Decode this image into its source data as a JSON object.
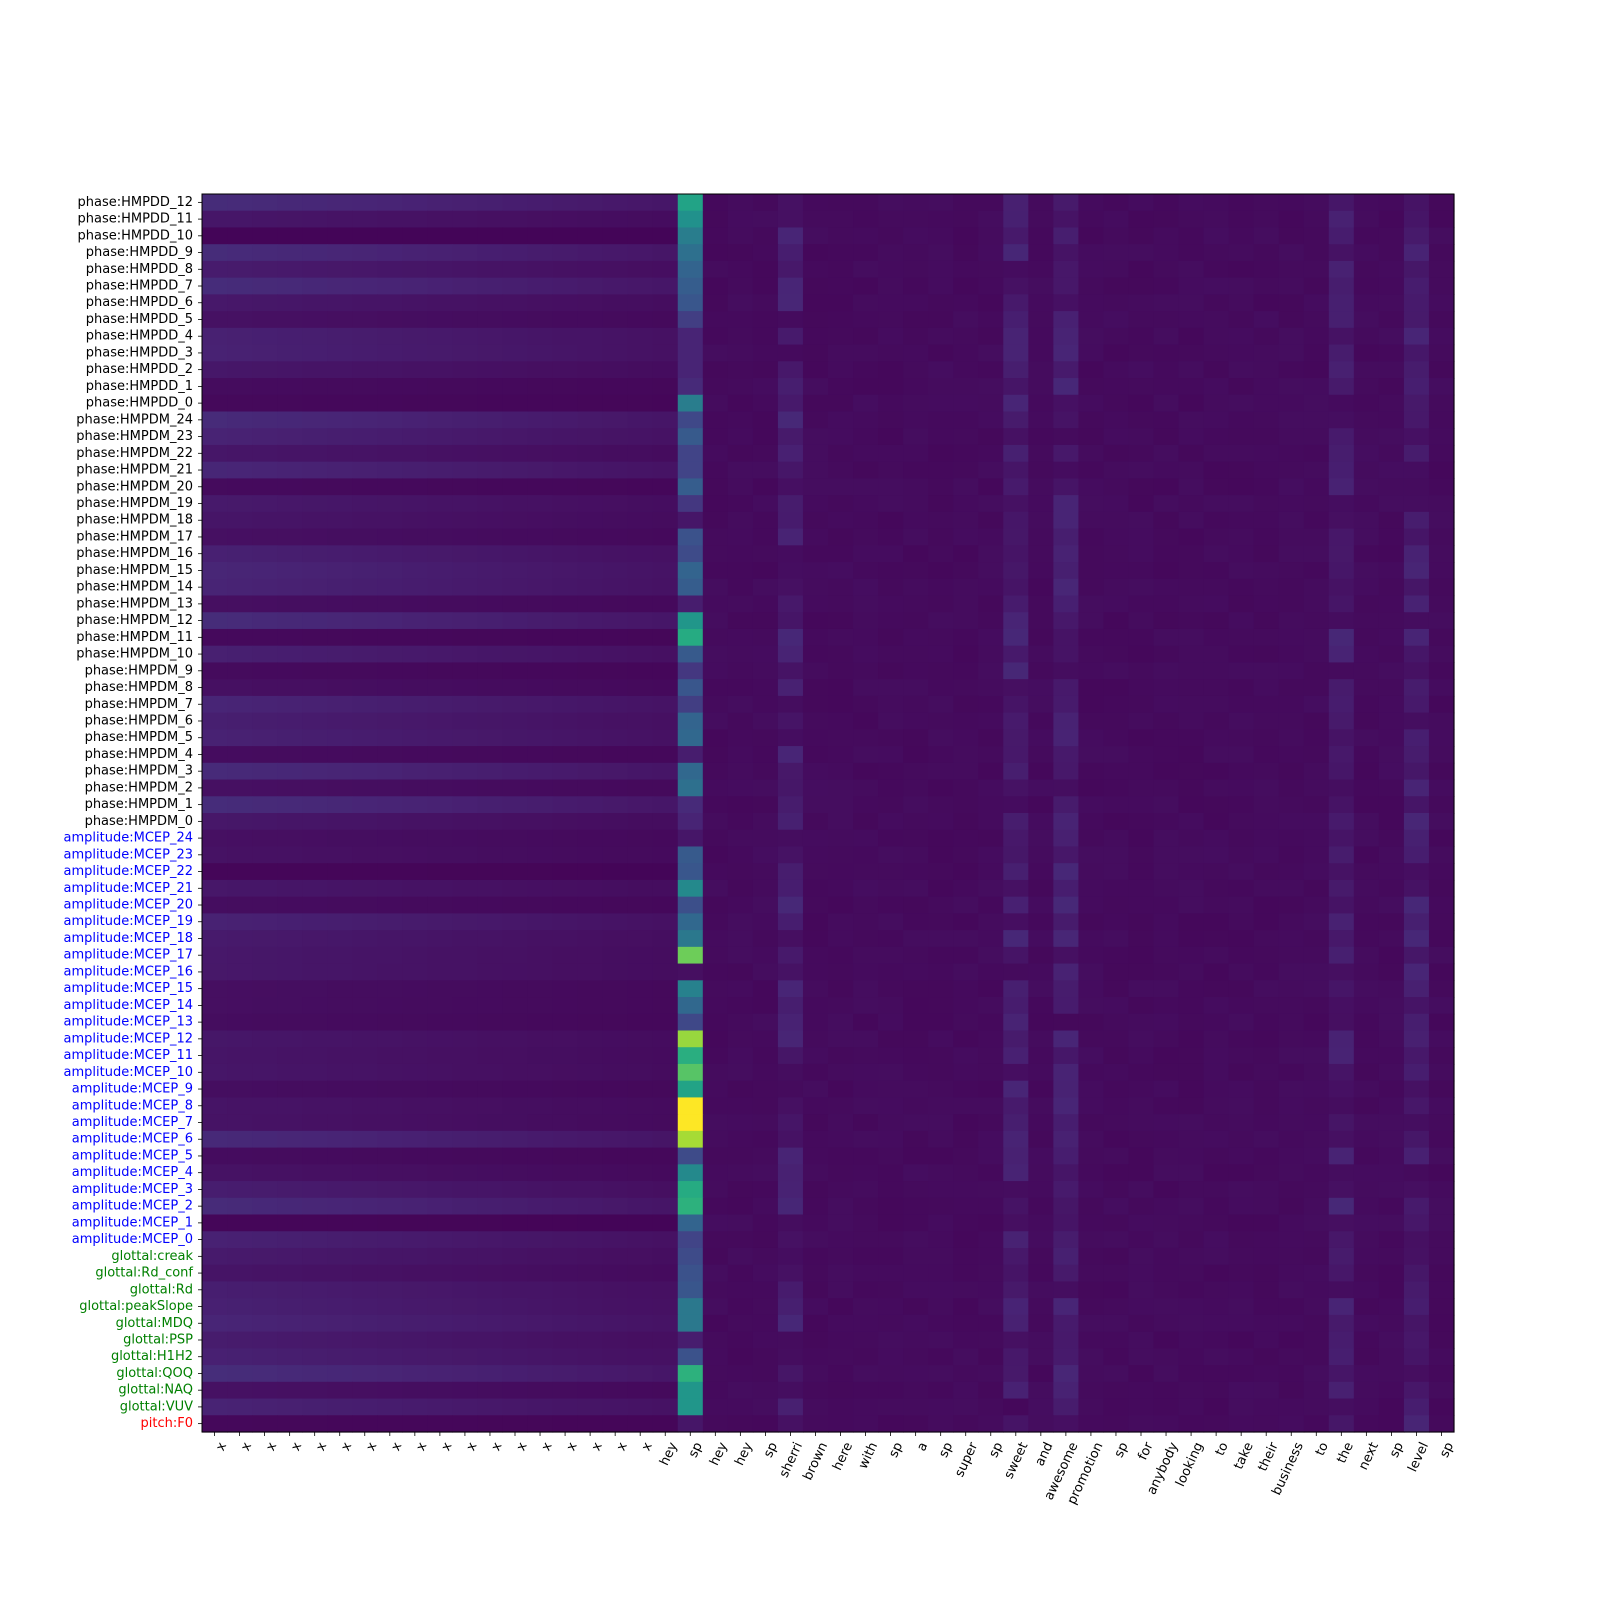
{
  "chart_data": {
    "type": "heatmap",
    "colormap": "viridis",
    "title": "",
    "xlabel": "",
    "ylabel": "",
    "value_range": [
      0,
      1
    ],
    "x_categories": [
      "x",
      "x",
      "x",
      "x",
      "x",
      "x",
      "x",
      "x",
      "x",
      "x",
      "x",
      "x",
      "x",
      "x",
      "x",
      "x",
      "x",
      "x",
      "hey",
      "sp",
      "hey",
      "hey",
      "sp",
      "sherri",
      "brown",
      "here",
      "with",
      "sp",
      "a",
      "sp",
      "super",
      "sp",
      "sweet",
      "and",
      "awesome",
      "promotion",
      "sp",
      "for",
      "anybody",
      "looking",
      "to",
      "take",
      "their",
      "business",
      "to",
      "the",
      "next",
      "sp",
      "level",
      "sp"
    ],
    "y_categories": [
      {
        "label": "phase:HMPDD_12",
        "group": "phase"
      },
      {
        "label": "phase:HMPDD_11",
        "group": "phase"
      },
      {
        "label": "phase:HMPDD_10",
        "group": "phase"
      },
      {
        "label": "phase:HMPDD_9",
        "group": "phase"
      },
      {
        "label": "phase:HMPDD_8",
        "group": "phase"
      },
      {
        "label": "phase:HMPDD_7",
        "group": "phase"
      },
      {
        "label": "phase:HMPDD_6",
        "group": "phase"
      },
      {
        "label": "phase:HMPDD_5",
        "group": "phase"
      },
      {
        "label": "phase:HMPDD_4",
        "group": "phase"
      },
      {
        "label": "phase:HMPDD_3",
        "group": "phase"
      },
      {
        "label": "phase:HMPDD_2",
        "group": "phase"
      },
      {
        "label": "phase:HMPDD_1",
        "group": "phase"
      },
      {
        "label": "phase:HMPDD_0",
        "group": "phase"
      },
      {
        "label": "phase:HMPDM_24",
        "group": "phase"
      },
      {
        "label": "phase:HMPDM_23",
        "group": "phase"
      },
      {
        "label": "phase:HMPDM_22",
        "group": "phase"
      },
      {
        "label": "phase:HMPDM_21",
        "group": "phase"
      },
      {
        "label": "phase:HMPDM_20",
        "group": "phase"
      },
      {
        "label": "phase:HMPDM_19",
        "group": "phase"
      },
      {
        "label": "phase:HMPDM_18",
        "group": "phase"
      },
      {
        "label": "phase:HMPDM_17",
        "group": "phase"
      },
      {
        "label": "phase:HMPDM_16",
        "group": "phase"
      },
      {
        "label": "phase:HMPDM_15",
        "group": "phase"
      },
      {
        "label": "phase:HMPDM_14",
        "group": "phase"
      },
      {
        "label": "phase:HMPDM_13",
        "group": "phase"
      },
      {
        "label": "phase:HMPDM_12",
        "group": "phase"
      },
      {
        "label": "phase:HMPDM_11",
        "group": "phase"
      },
      {
        "label": "phase:HMPDM_10",
        "group": "phase"
      },
      {
        "label": "phase:HMPDM_9",
        "group": "phase"
      },
      {
        "label": "phase:HMPDM_8",
        "group": "phase"
      },
      {
        "label": "phase:HMPDM_7",
        "group": "phase"
      },
      {
        "label": "phase:HMPDM_6",
        "group": "phase"
      },
      {
        "label": "phase:HMPDM_5",
        "group": "phase"
      },
      {
        "label": "phase:HMPDM_4",
        "group": "phase"
      },
      {
        "label": "phase:HMPDM_3",
        "group": "phase"
      },
      {
        "label": "phase:HMPDM_2",
        "group": "phase"
      },
      {
        "label": "phase:HMPDM_1",
        "group": "phase"
      },
      {
        "label": "phase:HMPDM_0",
        "group": "phase"
      },
      {
        "label": "amplitude:MCEP_24",
        "group": "amplitude"
      },
      {
        "label": "amplitude:MCEP_23",
        "group": "amplitude"
      },
      {
        "label": "amplitude:MCEP_22",
        "group": "amplitude"
      },
      {
        "label": "amplitude:MCEP_21",
        "group": "amplitude"
      },
      {
        "label": "amplitude:MCEP_20",
        "group": "amplitude"
      },
      {
        "label": "amplitude:MCEP_19",
        "group": "amplitude"
      },
      {
        "label": "amplitude:MCEP_18",
        "group": "amplitude"
      },
      {
        "label": "amplitude:MCEP_17",
        "group": "amplitude"
      },
      {
        "label": "amplitude:MCEP_16",
        "group": "amplitude"
      },
      {
        "label": "amplitude:MCEP_15",
        "group": "amplitude"
      },
      {
        "label": "amplitude:MCEP_14",
        "group": "amplitude"
      },
      {
        "label": "amplitude:MCEP_13",
        "group": "amplitude"
      },
      {
        "label": "amplitude:MCEP_12",
        "group": "amplitude"
      },
      {
        "label": "amplitude:MCEP_11",
        "group": "amplitude"
      },
      {
        "label": "amplitude:MCEP_10",
        "group": "amplitude"
      },
      {
        "label": "amplitude:MCEP_9",
        "group": "amplitude"
      },
      {
        "label": "amplitude:MCEP_8",
        "group": "amplitude"
      },
      {
        "label": "amplitude:MCEP_7",
        "group": "amplitude"
      },
      {
        "label": "amplitude:MCEP_6",
        "group": "amplitude"
      },
      {
        "label": "amplitude:MCEP_5",
        "group": "amplitude"
      },
      {
        "label": "amplitude:MCEP_4",
        "group": "amplitude"
      },
      {
        "label": "amplitude:MCEP_3",
        "group": "amplitude"
      },
      {
        "label": "amplitude:MCEP_2",
        "group": "amplitude"
      },
      {
        "label": "amplitude:MCEP_1",
        "group": "amplitude"
      },
      {
        "label": "amplitude:MCEP_0",
        "group": "amplitude"
      },
      {
        "label": "glottal:creak",
        "group": "glottal"
      },
      {
        "label": "glottal:Rd_conf",
        "group": "glottal"
      },
      {
        "label": "glottal:Rd",
        "group": "glottal"
      },
      {
        "label": "glottal:peakSlope",
        "group": "glottal"
      },
      {
        "label": "glottal:MDQ",
        "group": "glottal"
      },
      {
        "label": "glottal:PSP",
        "group": "glottal"
      },
      {
        "label": "glottal:H1H2",
        "group": "glottal"
      },
      {
        "label": "glottal:QOQ",
        "group": "glottal"
      },
      {
        "label": "glottal:NAQ",
        "group": "glottal"
      },
      {
        "label": "glottal:VUV",
        "group": "glottal"
      },
      {
        "label": "pitch:F0",
        "group": "pitch"
      }
    ],
    "group_colors": {
      "phase": "#000000",
      "amplitude": "#0000ff",
      "glottal": "#008000",
      "pitch": "#ff0000"
    },
    "highlight_column": {
      "index": 19,
      "label": "sp",
      "values": [
        0.58,
        0.5,
        0.45,
        0.42,
        0.38,
        0.34,
        0.3,
        0.18,
        0.1,
        0.1,
        0.1,
        0.12,
        0.45,
        0.22,
        0.32,
        0.2,
        0.2,
        0.34,
        0.16,
        0.06,
        0.28,
        0.24,
        0.38,
        0.34,
        0.08,
        0.52,
        0.62,
        0.32,
        0.16,
        0.3,
        0.18,
        0.38,
        0.4,
        0.08,
        0.4,
        0.42,
        0.12,
        0.1,
        0.06,
        0.32,
        0.3,
        0.48,
        0.26,
        0.4,
        0.44,
        0.8,
        0.04,
        0.46,
        0.4,
        0.22,
        0.86,
        0.64,
        0.76,
        0.58,
        1.0,
        1.0,
        0.88,
        0.24,
        0.48,
        0.62,
        0.66,
        0.38,
        0.2,
        0.24,
        0.28,
        0.3,
        0.44,
        0.44,
        0.08,
        0.28,
        0.66,
        0.52,
        0.52,
        0.06
      ]
    },
    "notable_columns": [
      23,
      32,
      34,
      45,
      48
    ],
    "background_value": 0.02,
    "left_block_value": 0.09
  }
}
